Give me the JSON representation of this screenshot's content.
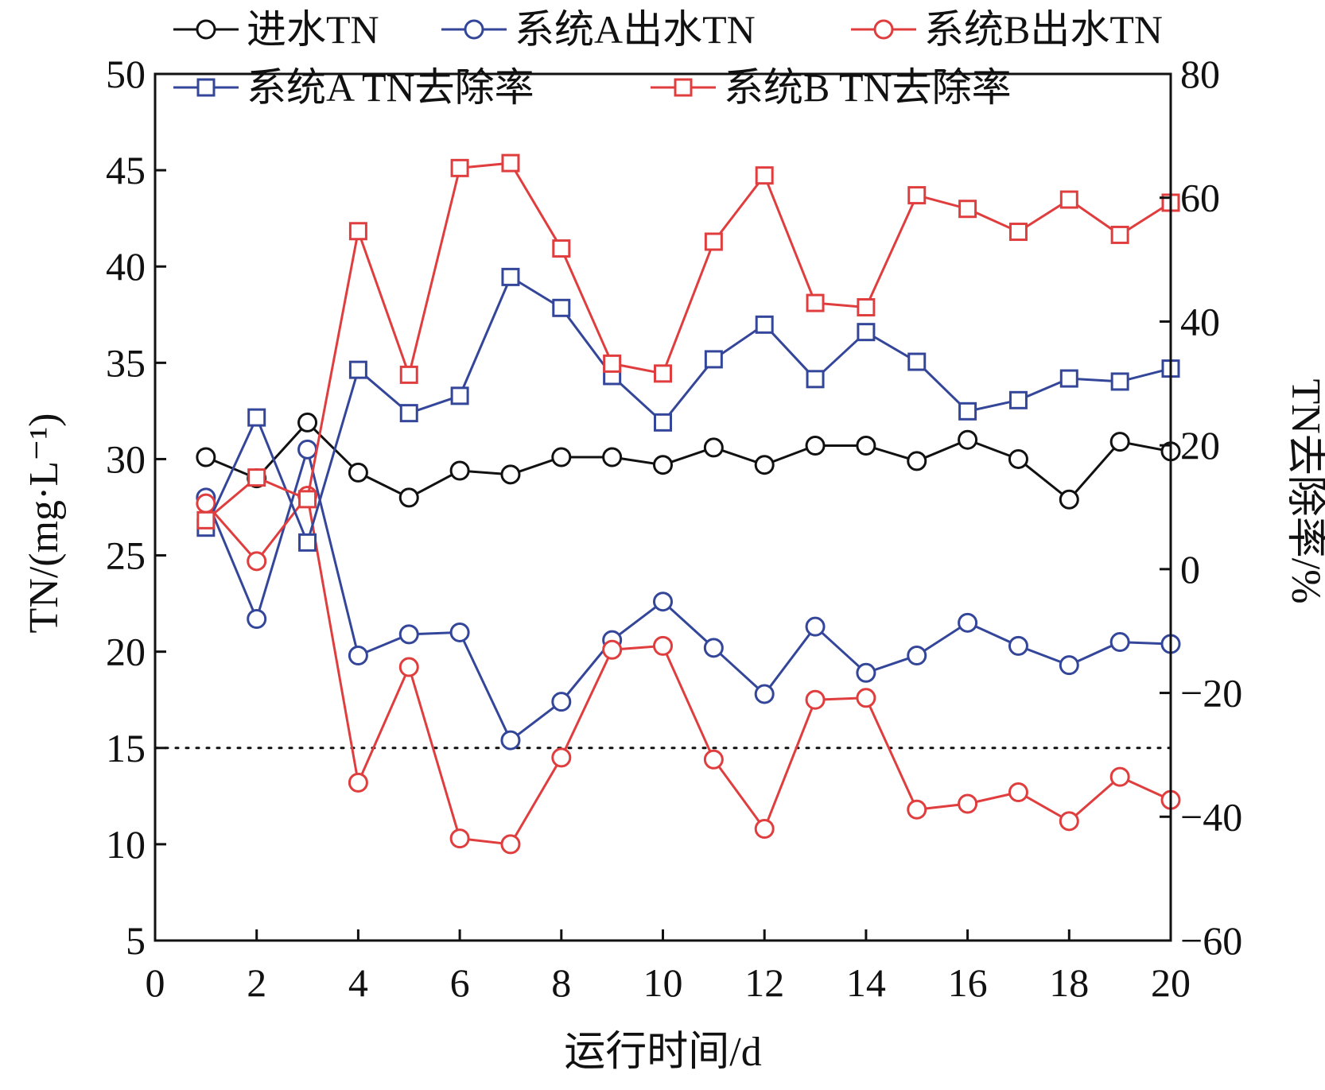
{
  "chart_data": {
    "type": "line",
    "title": "",
    "xlabel": "运行时间/d",
    "ylabel_left": "TN/(mg·L⁻¹)",
    "ylabel_right": "TN去除率/%",
    "xlim": [
      0,
      20
    ],
    "xticks": [
      0,
      2,
      4,
      6,
      8,
      10,
      12,
      14,
      16,
      18,
      20
    ],
    "ylim_left": [
      5,
      50
    ],
    "yticks_left": [
      5,
      10,
      15,
      20,
      25,
      30,
      35,
      40,
      45,
      50
    ],
    "ylim_right": [
      -60,
      80
    ],
    "yticks_right": [
      -60,
      -40,
      -20,
      0,
      20,
      40,
      60,
      80
    ],
    "reference_line": {
      "axis": "left",
      "y": 15,
      "style": "dotted"
    },
    "grid": false,
    "legend": {
      "position": "top"
    },
    "x": [
      1,
      2,
      3,
      4,
      5,
      6,
      7,
      8,
      9,
      10,
      11,
      12,
      13,
      14,
      15,
      16,
      17,
      18,
      19,
      20
    ],
    "series": [
      {
        "name": "进水TN",
        "axis": "left",
        "marker": "circle",
        "color": "#111111",
        "values": [
          30.1,
          29.0,
          31.9,
          29.3,
          28.0,
          29.4,
          29.2,
          30.1,
          30.1,
          29.7,
          30.6,
          29.7,
          30.7,
          30.7,
          29.9,
          31.0,
          30.0,
          27.9,
          30.9,
          30.4
        ]
      },
      {
        "name": "系统A出水TN",
        "axis": "left",
        "marker": "circle",
        "color": "#34469a",
        "values": [
          28.0,
          21.7,
          30.5,
          19.8,
          20.9,
          21.0,
          15.4,
          17.4,
          20.6,
          22.6,
          20.2,
          17.8,
          21.3,
          18.9,
          19.8,
          21.5,
          20.3,
          19.3,
          20.5,
          20.4
        ]
      },
      {
        "name": "系统B出水TN",
        "axis": "left",
        "marker": "circle",
        "color": "#e03e3e",
        "values": [
          27.7,
          24.7,
          28.1,
          13.2,
          19.2,
          10.3,
          10.0,
          14.5,
          20.1,
          20.3,
          14.4,
          10.8,
          17.5,
          17.6,
          11.8,
          12.1,
          12.7,
          11.2,
          13.5,
          12.3
        ]
      },
      {
        "name": "系统A TN去除率",
        "axis": "right",
        "marker": "square",
        "color": "#34469a",
        "values": [
          6.7,
          24.5,
          4.3,
          32.2,
          25.2,
          28.0,
          47.2,
          42.2,
          31.2,
          23.7,
          33.9,
          39.5,
          30.7,
          38.3,
          33.5,
          25.5,
          27.3,
          30.8,
          30.3,
          32.4
        ]
      },
      {
        "name": "系统B TN去除率",
        "axis": "right",
        "marker": "square",
        "color": "#e03e3e",
        "values": [
          7.9,
          14.8,
          11.3,
          54.6,
          31.4,
          64.8,
          65.6,
          51.8,
          33.2,
          31.6,
          52.9,
          63.6,
          43.0,
          42.3,
          60.4,
          58.2,
          54.5,
          59.7,
          54.0,
          59.2
        ]
      }
    ]
  }
}
